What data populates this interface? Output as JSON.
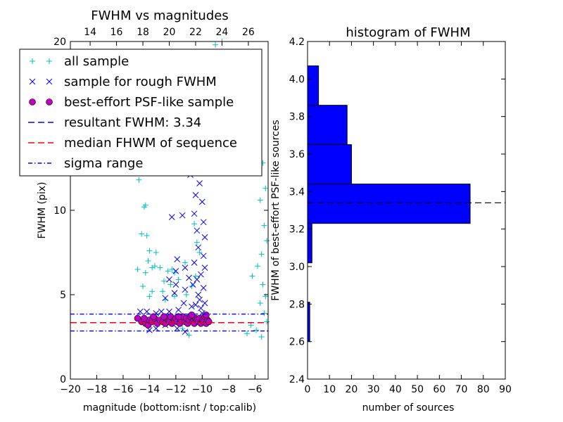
{
  "chart_data": [
    {
      "type": "scatter",
      "title": "FWHM vs magnitudes",
      "xlabel": "magnitude (bottom:isnt / top:calib)",
      "ylabel": "FWHM (pix)",
      "xlim": [
        -20,
        -5
      ],
      "ylim": [
        0,
        20
      ],
      "x_ticks": [
        "−20",
        "−18",
        "−16",
        "−14",
        "−12",
        "−10",
        "−8",
        "−6"
      ],
      "x_tick_values": [
        -20,
        -18,
        -16,
        -14,
        -12,
        -10,
        -8,
        -6
      ],
      "y_ticks": [
        "0",
        "5",
        "10",
        "20"
      ],
      "y_tick_values": [
        0,
        5,
        10,
        20
      ],
      "top_axis": {
        "ticks": [
          "14",
          "16",
          "18",
          "20",
          "22",
          "24",
          "26"
        ],
        "tick_values_bottom_units": [
          -18.5,
          -16.5,
          -14.5,
          -12.5,
          -10.5,
          -8.5,
          -6.5
        ]
      },
      "legend": {
        "placement": "upper-left",
        "entries": [
          {
            "label": "all sample",
            "marker": "+",
            "color": "#00bfbf"
          },
          {
            "label": "sample for rough FWHM",
            "marker": "x",
            "color": "#0000ff"
          },
          {
            "label": "best-effort PSF-like sample",
            "marker": "o",
            "color": "#bf00bf"
          },
          {
            "label": "resultant FWHM: 3.34",
            "line": "dashed",
            "color": "#0000ff"
          },
          {
            "label": "median FHWM of sequence",
            "line": "dashed",
            "color": "#ff0000"
          },
          {
            "label": "sigma range",
            "line": "dashdot",
            "color": "#0000ff"
          }
        ]
      },
      "reference_lines": [
        {
          "name": "resultant FWHM",
          "y": 3.34,
          "style": "dashed",
          "color": "#0000ff"
        },
        {
          "name": "median FHWM of sequence",
          "y": 3.34,
          "style": "dashed",
          "color": "#ff0000"
        },
        {
          "name": "sigma range upper",
          "y": 3.85,
          "style": "dashdot",
          "color": "#0000ff"
        },
        {
          "name": "sigma range lower",
          "y": 2.85,
          "style": "dashdot",
          "color": "#0000ff"
        }
      ],
      "series": [
        {
          "name": "all sample",
          "marker": "+",
          "color": "#00bfbf",
          "points": [
            [
              -14.8,
              11.8
            ],
            [
              -14.3,
              10.3
            ],
            [
              -14.4,
              10.2
            ],
            [
              -14.6,
              8.6
            ],
            [
              -14.2,
              8.5
            ],
            [
              -14.0,
              7.6
            ],
            [
              -13.5,
              7.5
            ],
            [
              -14.1,
              7.0
            ],
            [
              -13.8,
              6.6
            ],
            [
              -13.6,
              6.7
            ],
            [
              -14.9,
              6.5
            ],
            [
              -14.3,
              6.3
            ],
            [
              -13.2,
              6.6
            ],
            [
              -12.6,
              6.4
            ],
            [
              -12.3,
              6.5
            ],
            [
              -12.1,
              6.3
            ],
            [
              -11.3,
              6.9
            ],
            [
              -12.9,
              5.8
            ],
            [
              -11.8,
              5.9
            ],
            [
              -14.5,
              5.5
            ],
            [
              -13.8,
              5.2
            ],
            [
              -14.0,
              4.9
            ],
            [
              -12.1,
              4.9
            ],
            [
              -12.8,
              4.7
            ],
            [
              -11.2,
              5.0
            ],
            [
              -10.5,
              6.1
            ],
            [
              -10.8,
              5.5
            ],
            [
              -10.2,
              7.5
            ],
            [
              -13.0,
              5.2
            ],
            [
              -12.4,
              5.6
            ],
            [
              -11.0,
              2.6
            ],
            [
              -11.5,
              3.0
            ],
            [
              -10.4,
              8.1
            ],
            [
              -10.6,
              9.2
            ],
            [
              -9.0,
              19.8
            ],
            [
              -8.5,
              20.0
            ],
            [
              -7.8,
              19.4
            ],
            [
              -7.2,
              18.9
            ],
            [
              -6.8,
              18.0
            ],
            [
              -7.5,
              17.5
            ],
            [
              -6.5,
              16.3
            ],
            [
              -6.0,
              15.0
            ],
            [
              -5.7,
              14.0
            ],
            [
              -5.4,
              12.8
            ],
            [
              -5.2,
              11.3
            ],
            [
              -5.6,
              10.6
            ],
            [
              -5.3,
              9.1
            ],
            [
              -5.1,
              8.2
            ],
            [
              -5.5,
              7.4
            ],
            [
              -5.8,
              6.7
            ],
            [
              -6.2,
              6.1
            ],
            [
              -5.4,
              5.6
            ],
            [
              -5.2,
              4.9
            ],
            [
              -5.6,
              4.5
            ],
            [
              -5.3,
              3.9
            ],
            [
              -5.1,
              3.4
            ],
            [
              -5.5,
              2.5
            ],
            [
              -5.9,
              2.9
            ],
            [
              -6.3,
              3.2
            ],
            [
              -6.6,
              2.7
            ]
          ]
        },
        {
          "name": "sample for rough FWHM",
          "marker": "x",
          "color": "#0000ff",
          "points": [
            [
              -11.5,
              9.7
            ],
            [
              -12.3,
              9.6
            ],
            [
              -11.9,
              7.1
            ],
            [
              -11.3,
              6.6
            ],
            [
              -12.0,
              6.4
            ],
            [
              -11.0,
              6.0
            ],
            [
              -12.5,
              5.9
            ],
            [
              -12.0,
              5.6
            ],
            [
              -10.7,
              5.6
            ],
            [
              -11.3,
              5.3
            ],
            [
              -12.1,
              5.1
            ],
            [
              -12.8,
              4.8
            ],
            [
              -11.4,
              4.5
            ],
            [
              -10.8,
              4.3
            ],
            [
              -10.1,
              4.2
            ],
            [
              -11.8,
              4.1
            ],
            [
              -12.5,
              4.0
            ],
            [
              -13.1,
              4.0
            ],
            [
              -13.5,
              3.9
            ],
            [
              -14.2,
              4.0
            ],
            [
              -14.7,
              4.0
            ],
            [
              -12.8,
              3.2
            ],
            [
              -11.9,
              3.0
            ],
            [
              -11.3,
              2.8
            ],
            [
              -13.5,
              3.0
            ],
            [
              -14.0,
              2.9
            ],
            [
              -10.7,
              14.1
            ],
            [
              -11.2,
              13.5
            ],
            [
              -10.3,
              12.4
            ],
            [
              -10.9,
              12.1
            ],
            [
              -10.2,
              11.6
            ],
            [
              -10.5,
              10.9
            ],
            [
              -10.0,
              10.5
            ],
            [
              -10.6,
              9.8
            ],
            [
              -9.9,
              9.3
            ],
            [
              -10.4,
              8.8
            ],
            [
              -9.8,
              8.4
            ],
            [
              -10.3,
              7.8
            ],
            [
              -9.9,
              7.3
            ],
            [
              -10.6,
              6.9
            ],
            [
              -9.8,
              6.6
            ],
            [
              -10.1,
              6.2
            ],
            [
              -10.4,
              5.9
            ],
            [
              -9.9,
              5.4
            ],
            [
              -10.3,
              5.0
            ],
            [
              -10.2,
              4.7
            ],
            [
              -9.8,
              4.5
            ],
            [
              -10.5,
              4.4
            ],
            [
              -10.0,
              3.9
            ],
            [
              -9.9,
              3.6
            ]
          ]
        },
        {
          "name": "best-effort PSF-like sample",
          "marker": "o",
          "color": "#bf00bf",
          "points": [
            [
              -14.9,
              3.6
            ],
            [
              -14.6,
              3.4
            ],
            [
              -14.3,
              3.3
            ],
            [
              -14.1,
              3.2
            ],
            [
              -14.0,
              3.5
            ],
            [
              -13.8,
              3.4
            ],
            [
              -13.6,
              3.6
            ],
            [
              -13.4,
              3.3
            ],
            [
              -13.2,
              3.5
            ],
            [
              -13.0,
              3.4
            ],
            [
              -12.8,
              3.3
            ],
            [
              -12.7,
              3.6
            ],
            [
              -12.5,
              3.4
            ],
            [
              -12.4,
              3.7
            ],
            [
              -12.3,
              3.3
            ],
            [
              -12.1,
              3.5
            ],
            [
              -12.0,
              3.6
            ],
            [
              -11.9,
              3.4
            ],
            [
              -11.7,
              3.3
            ],
            [
              -11.6,
              3.5
            ],
            [
              -11.5,
              3.7
            ],
            [
              -11.3,
              3.4
            ],
            [
              -11.2,
              3.6
            ],
            [
              -11.1,
              3.3
            ],
            [
              -11.0,
              3.5
            ],
            [
              -10.9,
              3.7
            ],
            [
              -10.7,
              3.4
            ],
            [
              -10.6,
              3.3
            ],
            [
              -10.5,
              3.6
            ],
            [
              -10.4,
              3.5
            ],
            [
              -10.3,
              3.4
            ],
            [
              -10.2,
              3.6
            ],
            [
              -10.1,
              3.3
            ],
            [
              -10.0,
              3.5
            ],
            [
              -9.9,
              3.4
            ],
            [
              -9.8,
              3.7
            ],
            [
              -9.7,
              3.3
            ],
            [
              -9.6,
              3.5
            ],
            [
              -9.5,
              3.4
            ],
            [
              -13.7,
              3.7
            ],
            [
              -14.4,
              3.6
            ],
            [
              -12.9,
              3.7
            ],
            [
              -11.8,
              3.7
            ],
            [
              -10.8,
              3.8
            ],
            [
              -9.7,
              3.8
            ]
          ]
        }
      ]
    },
    {
      "type": "bar",
      "orientation": "horizontal",
      "title": "histogram of FWHM",
      "xlabel": "number of sources",
      "ylabel": "FWHM of best-effort PSF-like sources",
      "xlim": [
        0,
        90
      ],
      "ylim": [
        2.4,
        4.2
      ],
      "x_ticks": [
        "0",
        "10",
        "20",
        "30",
        "40",
        "50",
        "60",
        "70",
        "80",
        "90"
      ],
      "x_tick_values": [
        0,
        10,
        20,
        30,
        40,
        50,
        60,
        70,
        80,
        90
      ],
      "y_ticks": [
        "2.4",
        "2.6",
        "2.8",
        "3.0",
        "3.2",
        "3.4",
        "3.6",
        "3.8",
        "4.0",
        "4.2"
      ],
      "y_tick_values": [
        2.4,
        2.6,
        2.8,
        3.0,
        3.2,
        3.4,
        3.6,
        3.8,
        4.0,
        4.2
      ],
      "bar_color": "#0000ff",
      "bins": [
        {
          "low": 2.6,
          "high": 2.81,
          "count": 1
        },
        {
          "low": 3.02,
          "high": 3.23,
          "count": 2
        },
        {
          "low": 3.23,
          "high": 3.44,
          "count": 74
        },
        {
          "low": 3.65,
          "high": 3.86,
          "count": 18
        },
        {
          "low": 3.86,
          "high": 4.07,
          "count": 5
        },
        {
          "low": 3.44,
          "high": 3.65,
          "count": 20
        }
      ],
      "reference_lines": [
        {
          "name": "resultant FWHM",
          "y": 3.34,
          "style": "dashed",
          "color": "#000000"
        }
      ]
    }
  ]
}
